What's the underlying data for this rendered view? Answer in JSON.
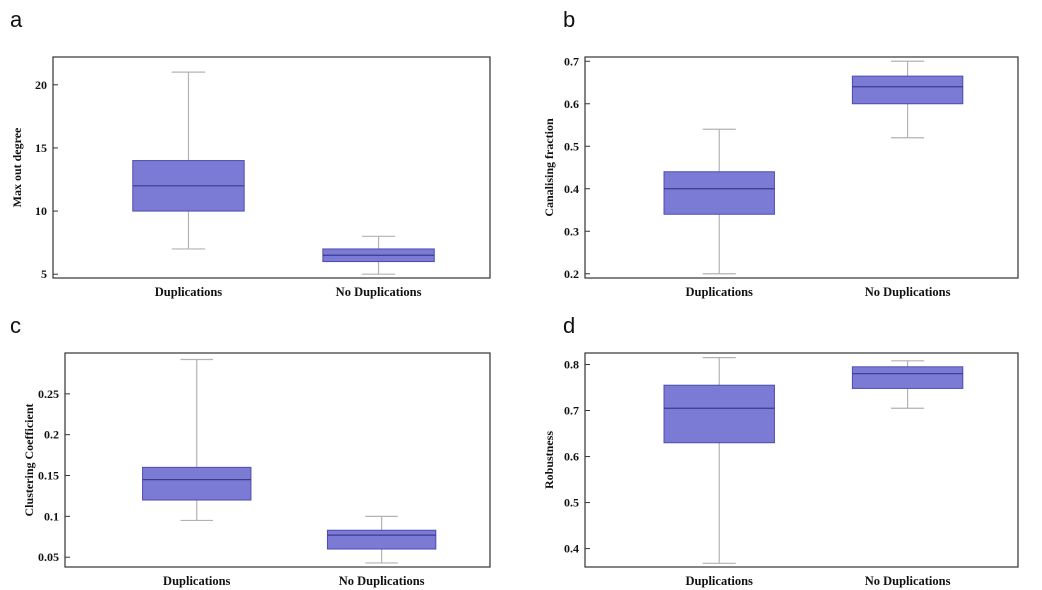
{
  "colors": {
    "box_fill": "#7b7bd6",
    "box_edge": "#4d4db0",
    "whisker": "#b3b3b3",
    "median": "#3b3b8c",
    "axis": "#333333"
  },
  "chart_data": [
    {
      "panel": "a",
      "type": "box",
      "ylabel": "Max out degree",
      "categories": [
        "Duplications",
        "No Duplications"
      ],
      "boxes": [
        {
          "min": 7,
          "q1": 10,
          "median": 12,
          "q3": 14,
          "max": 21
        },
        {
          "min": 5,
          "q1": 6,
          "median": 6.5,
          "q3": 7,
          "max": 8
        }
      ],
      "ylim": [
        4.7,
        22.2
      ],
      "yticks": [
        5,
        10,
        15,
        20
      ],
      "ytick_labels": [
        "5",
        "10",
        "15",
        "20"
      ],
      "grid": false
    },
    {
      "panel": "b",
      "type": "box",
      "ylabel": "Canalising fraction",
      "categories": [
        "Duplications",
        "No Duplications"
      ],
      "boxes": [
        {
          "min": 0.2,
          "q1": 0.34,
          "median": 0.4,
          "q3": 0.44,
          "max": 0.54
        },
        {
          "min": 0.52,
          "q1": 0.6,
          "median": 0.64,
          "q3": 0.665,
          "max": 0.7
        }
      ],
      "ylim": [
        0.19,
        0.71
      ],
      "yticks": [
        0.2,
        0.3,
        0.4,
        0.5,
        0.6,
        0.7
      ],
      "ytick_labels": [
        "0.2",
        "0.3",
        "0.4",
        "0.5",
        "0.6",
        "0.7"
      ],
      "grid": false
    },
    {
      "panel": "c",
      "type": "box",
      "ylabel": "Clustering Coefficient",
      "categories": [
        "Duplications",
        "No Duplications"
      ],
      "boxes": [
        {
          "min": 0.095,
          "q1": 0.12,
          "median": 0.145,
          "q3": 0.16,
          "max": 0.292
        },
        {
          "min": 0.043,
          "q1": 0.06,
          "median": 0.077,
          "q3": 0.083,
          "max": 0.1
        }
      ],
      "ylim": [
        0.038,
        0.3
      ],
      "yticks": [
        0.05,
        0.1,
        0.15,
        0.2,
        0.25
      ],
      "ytick_labels": [
        "0.05",
        "0.1",
        "0.15",
        "0.2",
        "0.25"
      ],
      "grid": false
    },
    {
      "panel": "d",
      "type": "box",
      "ylabel": "Robustness",
      "categories": [
        "Duplications",
        "No Duplications"
      ],
      "boxes": [
        {
          "min": 0.368,
          "q1": 0.63,
          "median": 0.705,
          "q3": 0.755,
          "max": 0.815
        },
        {
          "min": 0.705,
          "q1": 0.748,
          "median": 0.78,
          "q3": 0.795,
          "max": 0.808
        }
      ],
      "ylim": [
        0.36,
        0.825
      ],
      "yticks": [
        0.4,
        0.5,
        0.6,
        0.7,
        0.8
      ],
      "ytick_labels": [
        "0.4",
        "0.5",
        "0.6",
        "0.7",
        "0.8"
      ],
      "grid": false
    }
  ]
}
